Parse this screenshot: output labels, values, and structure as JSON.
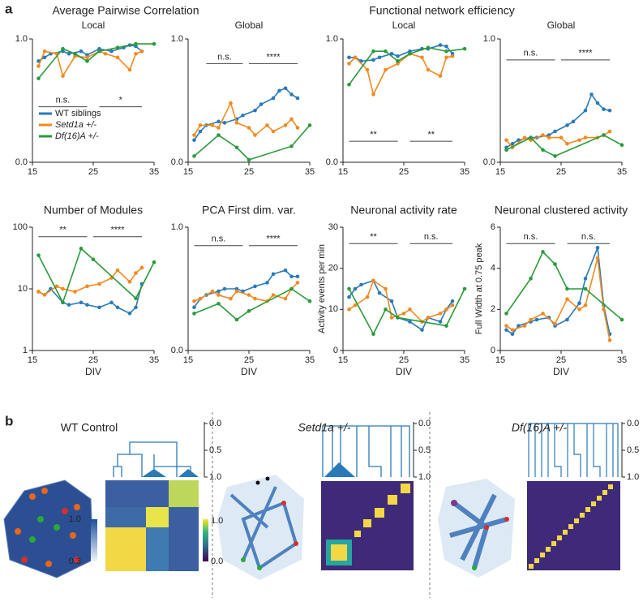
{
  "panel_labels": [
    "a",
    "b"
  ],
  "group_titles": [
    "Average Pairwise Correlation",
    "Functional network efficiency"
  ],
  "chart_data": [
    {
      "type": "line",
      "title": "Local",
      "xlim": [
        15,
        35
      ],
      "xticks": [
        15,
        25,
        35
      ],
      "ylim": [
        0,
        1
      ],
      "yticks": [
        {
          "value": 0,
          "label": "0.0"
        },
        {
          "value": 1,
          "label": "1.0"
        }
      ],
      "legend": "lower left",
      "series": [
        {
          "name": "WT siblings",
          "color": "#2a7ab8",
          "x": [
            16,
            17,
            18,
            20,
            21,
            23,
            24,
            26,
            28,
            30,
            31,
            32,
            33
          ],
          "values": [
            0.82,
            0.85,
            0.88,
            0.9,
            0.88,
            0.9,
            0.87,
            0.92,
            0.9,
            0.93,
            0.95,
            0.94,
            0.9
          ]
        },
        {
          "name": "Setd1a +/-",
          "color": "#f28a1e",
          "x": [
            16,
            17,
            19,
            20,
            22,
            24,
            26,
            27,
            29,
            31,
            32,
            33
          ],
          "values": [
            0.78,
            0.9,
            0.88,
            0.7,
            0.86,
            0.85,
            0.9,
            0.88,
            0.85,
            0.75,
            0.88,
            0.9
          ]
        },
        {
          "name": "Df(16)A +/-",
          "color": "#2a9a3a",
          "x": [
            16,
            20,
            22,
            24,
            26,
            29,
            32,
            35
          ],
          "values": [
            0.68,
            0.92,
            0.88,
            0.82,
            0.9,
            0.93,
            0.96,
            0.96
          ]
        }
      ],
      "annotations": [
        {
          "label": "n.s.",
          "x": [
            16,
            24
          ],
          "y": 0.45
        },
        {
          "label": "*",
          "x": [
            26,
            33
          ],
          "y": 0.45
        }
      ]
    },
    {
      "type": "line",
      "title": "Global",
      "xlim": [
        15,
        35
      ],
      "xticks": [
        15,
        25,
        35
      ],
      "ylim": [
        0,
        1
      ],
      "yticks": [
        {
          "value": 0,
          "label": "0.0"
        },
        {
          "value": 1,
          "label": "1.0"
        }
      ],
      "series": [
        {
          "color": "#2a7ab8",
          "x": [
            16,
            17,
            18,
            20,
            21,
            23,
            24,
            26,
            27,
            29,
            30,
            31,
            32,
            33
          ],
          "values": [
            0.18,
            0.25,
            0.3,
            0.33,
            0.32,
            0.35,
            0.38,
            0.42,
            0.47,
            0.52,
            0.58,
            0.6,
            0.55,
            0.52
          ]
        },
        {
          "color": "#f28a1e",
          "x": [
            16,
            17,
            19,
            20,
            22,
            23,
            25,
            26,
            28,
            29,
            31,
            32,
            33
          ],
          "values": [
            0.22,
            0.3,
            0.3,
            0.28,
            0.48,
            0.32,
            0.28,
            0.22,
            0.3,
            0.25,
            0.3,
            0.35,
            0.28
          ]
        },
        {
          "color": "#2a9a3a",
          "x": [
            16,
            20,
            23,
            25,
            32,
            35
          ],
          "values": [
            0.05,
            0.22,
            0.12,
            0.02,
            0.13,
            0.3
          ]
        }
      ],
      "annotations": [
        {
          "label": "n.s.",
          "x": [
            18,
            24
          ],
          "y": 0.8
        },
        {
          "label": "****",
          "x": [
            25,
            33
          ],
          "y": 0.8
        }
      ]
    },
    {
      "type": "line",
      "title": "Local",
      "xlim": [
        15,
        35
      ],
      "xticks": [
        15,
        25,
        35
      ],
      "ylim": [
        0,
        1
      ],
      "yticks": [
        {
          "value": 0,
          "label": "0.0"
        },
        {
          "value": 1,
          "label": "1.0"
        }
      ],
      "series": [
        {
          "color": "#2a7ab8",
          "x": [
            16,
            17,
            18,
            20,
            21,
            23,
            24,
            26,
            28,
            29,
            31,
            32,
            33
          ],
          "values": [
            0.85,
            0.85,
            0.82,
            0.83,
            0.85,
            0.88,
            0.86,
            0.9,
            0.92,
            0.92,
            0.95,
            0.94,
            0.88
          ]
        },
        {
          "color": "#f28a1e",
          "x": [
            16,
            17,
            19,
            20,
            22,
            24,
            26,
            28,
            29,
            31,
            32,
            33
          ],
          "values": [
            0.8,
            0.85,
            0.75,
            0.55,
            0.75,
            0.8,
            0.88,
            0.85,
            0.75,
            0.7,
            0.85,
            0.86
          ]
        },
        {
          "color": "#2a9a3a",
          "x": [
            16,
            20,
            22,
            24,
            26,
            29,
            32,
            35
          ],
          "values": [
            0.63,
            0.9,
            0.9,
            0.82,
            0.88,
            0.93,
            0.9,
            0.92
          ]
        }
      ],
      "annotations": [
        {
          "label": "**",
          "x": [
            16,
            24
          ],
          "y": 0.17
        },
        {
          "label": "**",
          "x": [
            26,
            33
          ],
          "y": 0.17
        }
      ]
    },
    {
      "type": "line",
      "title": "Global",
      "xlim": [
        15,
        35
      ],
      "xticks": [
        15,
        25,
        35
      ],
      "ylim": [
        0,
        1
      ],
      "yticks": [
        {
          "value": 0,
          "label": "0.0"
        },
        {
          "value": 1,
          "label": "1.0"
        }
      ],
      "series": [
        {
          "color": "#2a7ab8",
          "x": [
            16,
            17,
            18,
            20,
            21,
            23,
            24,
            26,
            27,
            29,
            30,
            31,
            32,
            33
          ],
          "values": [
            0.12,
            0.15,
            0.18,
            0.2,
            0.2,
            0.22,
            0.25,
            0.3,
            0.33,
            0.42,
            0.55,
            0.48,
            0.43,
            0.42
          ]
        },
        {
          "color": "#f28a1e",
          "x": [
            16,
            17,
            19,
            20,
            22,
            23,
            25,
            26,
            28,
            29,
            31,
            32,
            33
          ],
          "values": [
            0.18,
            0.12,
            0.2,
            0.18,
            0.22,
            0.2,
            0.2,
            0.15,
            0.18,
            0.2,
            0.2,
            0.22,
            0.25
          ]
        },
        {
          "color": "#2a9a3a",
          "x": [
            16,
            20,
            22,
            24,
            32,
            35
          ],
          "values": [
            0.1,
            0.2,
            0.1,
            0.05,
            0.22,
            0.14
          ]
        }
      ],
      "annotations": [
        {
          "label": "n.s.",
          "x": [
            16,
            24
          ],
          "y": 0.83
        },
        {
          "label": "****",
          "x": [
            25,
            33
          ],
          "y": 0.83
        }
      ]
    },
    {
      "type": "line",
      "title": "Number of Modules",
      "xlabel": "DIV",
      "xlim": [
        15,
        35
      ],
      "xticks": [
        15,
        25,
        35
      ],
      "ylim": [
        1,
        100
      ],
      "yticks": [
        1,
        10,
        100
      ],
      "log_scale": true,
      "series": [
        {
          "color": "#2a7ab8",
          "x": [
            16,
            17,
            18,
            20,
            21,
            23,
            24,
            26,
            28,
            29,
            31,
            32,
            33
          ],
          "values": [
            9,
            8,
            10,
            6,
            5.5,
            6,
            5.5,
            5,
            6,
            5,
            4,
            5,
            12
          ]
        },
        {
          "color": "#f28a1e",
          "x": [
            16,
            17,
            19,
            20,
            22,
            24,
            26,
            28,
            29,
            31,
            32,
            33
          ],
          "values": [
            9,
            8,
            11,
            10,
            9,
            11,
            12,
            15,
            20,
            13,
            18,
            22
          ]
        },
        {
          "color": "#2a9a3a",
          "x": [
            16,
            20,
            23,
            25,
            32,
            35
          ],
          "values": [
            35,
            6,
            45,
            30,
            7,
            27
          ]
        }
      ],
      "annotations": [
        {
          "label": "**",
          "x": [
            16,
            24
          ],
          "y": 70
        },
        {
          "label": "****",
          "x": [
            25,
            33
          ],
          "y": 70
        }
      ]
    },
    {
      "type": "line",
      "title": "PCA First dim. var.",
      "xlabel": "DIV",
      "xlim": [
        15,
        35
      ],
      "xticks": [
        15,
        25,
        35
      ],
      "ylim": [
        0,
        1
      ],
      "yticks": [
        {
          "value": 0,
          "label": "0.0"
        },
        {
          "value": 1,
          "label": "1.0"
        }
      ],
      "series": [
        {
          "color": "#2a7ab8",
          "x": [
            16,
            17,
            18,
            20,
            21,
            23,
            24,
            26,
            28,
            29,
            31,
            32,
            33
          ],
          "values": [
            0.35,
            0.42,
            0.45,
            0.48,
            0.5,
            0.5,
            0.48,
            0.52,
            0.55,
            0.62,
            0.65,
            0.6,
            0.6
          ]
        },
        {
          "color": "#f28a1e",
          "x": [
            16,
            17,
            19,
            20,
            22,
            23,
            25,
            26,
            28,
            29,
            31,
            32,
            33
          ],
          "values": [
            0.4,
            0.42,
            0.48,
            0.45,
            0.42,
            0.48,
            0.45,
            0.42,
            0.4,
            0.45,
            0.42,
            0.5,
            0.55
          ]
        },
        {
          "color": "#2a9a3a",
          "x": [
            16,
            20,
            23,
            25,
            32,
            35
          ],
          "values": [
            0.3,
            0.38,
            0.25,
            0.32,
            0.5,
            0.4
          ]
        }
      ],
      "annotations": [
        {
          "label": "n.s.",
          "x": [
            16,
            24
          ],
          "y": 0.85
        },
        {
          "label": "****",
          "x": [
            25,
            33
          ],
          "y": 0.85
        }
      ]
    },
    {
      "type": "line",
      "title": "Neuronal activity rate",
      "xlabel": "DIV",
      "ylabel": "Activity events per min",
      "xlim": [
        15,
        35
      ],
      "xticks": [
        15,
        25,
        35
      ],
      "ylim": [
        0,
        30
      ],
      "yticks": [
        0,
        10,
        20,
        30
      ],
      "series": [
        {
          "color": "#2a7ab8",
          "x": [
            16,
            17,
            18,
            20,
            21,
            23,
            24,
            26,
            28,
            29,
            31,
            32,
            33
          ],
          "values": [
            13,
            15,
            16,
            17,
            14,
            12,
            8,
            7,
            5,
            8,
            7,
            10,
            12
          ]
        },
        {
          "color": "#f28a1e",
          "x": [
            16,
            17,
            19,
            20,
            22,
            23,
            25,
            26,
            28,
            29,
            31,
            32,
            33
          ],
          "values": [
            10,
            11,
            13,
            17,
            15,
            8,
            9,
            10,
            7,
            8,
            9,
            10,
            11
          ]
        },
        {
          "color": "#2a9a3a",
          "x": [
            16,
            20,
            22,
            24,
            32,
            35
          ],
          "values": [
            15,
            4,
            10,
            8,
            6,
            15
          ]
        }
      ],
      "annotations": [
        {
          "label": "**",
          "x": [
            16,
            24
          ],
          "y": 26
        },
        {
          "label": "n.s.",
          "x": [
            26,
            33
          ],
          "y": 26
        }
      ]
    },
    {
      "type": "line",
      "title": "Neuronal clustered activity",
      "xlabel": "DIV",
      "ylabel": "Full Width at 0.75 peak",
      "xlim": [
        15,
        35
      ],
      "xticks": [
        15,
        25,
        35
      ],
      "ylim": [
        0,
        6
      ],
      "yticks": [
        0,
        2,
        4,
        6
      ],
      "series": [
        {
          "color": "#2a7ab8",
          "x": [
            16,
            17,
            18,
            20,
            21,
            23,
            24,
            26,
            28,
            29,
            31,
            32,
            33
          ],
          "values": [
            1.0,
            0.8,
            1.2,
            1.4,
            1.5,
            1.6,
            1.2,
            1.5,
            2.3,
            3.5,
            5,
            2.2,
            0.8
          ]
        },
        {
          "color": "#f28a1e",
          "x": [
            16,
            17,
            19,
            20,
            22,
            24,
            26,
            28,
            29,
            31,
            32,
            33
          ],
          "values": [
            1.2,
            1.0,
            1.2,
            1.5,
            1.8,
            1.3,
            2.5,
            2.0,
            2.2,
            4.5,
            2.0,
            0.5
          ]
        },
        {
          "color": "#2a9a3a",
          "x": [
            16,
            20,
            22,
            24,
            26,
            29,
            35
          ],
          "values": [
            1.8,
            3.5,
            4.8,
            4.2,
            3.0,
            3.0,
            1.5
          ]
        }
      ],
      "annotations": [
        {
          "label": "n.s.",
          "x": [
            16,
            24
          ],
          "y": 5.2
        },
        {
          "label": "n.s.",
          "x": [
            26,
            33
          ],
          "y": 5.2
        }
      ]
    }
  ],
  "panel_b": {
    "groups": [
      {
        "title": "WT Control",
        "dendrogram_ticks": [
          "0.0",
          "0.5",
          "1.0"
        ]
      },
      {
        "title": "Setd1a +/-",
        "dendrogram_ticks": [
          "0.0",
          "0.5",
          "1.0"
        ]
      },
      {
        "title": "Df(16)A +/-",
        "dendrogram_ticks": [
          "0.0",
          "0.5",
          "1.0"
        ]
      }
    ],
    "colorbar_left_ticks": [
      "1.0",
      "0.3"
    ],
    "colorbar_right_ticks": [
      "1.0",
      "0.0"
    ]
  }
}
